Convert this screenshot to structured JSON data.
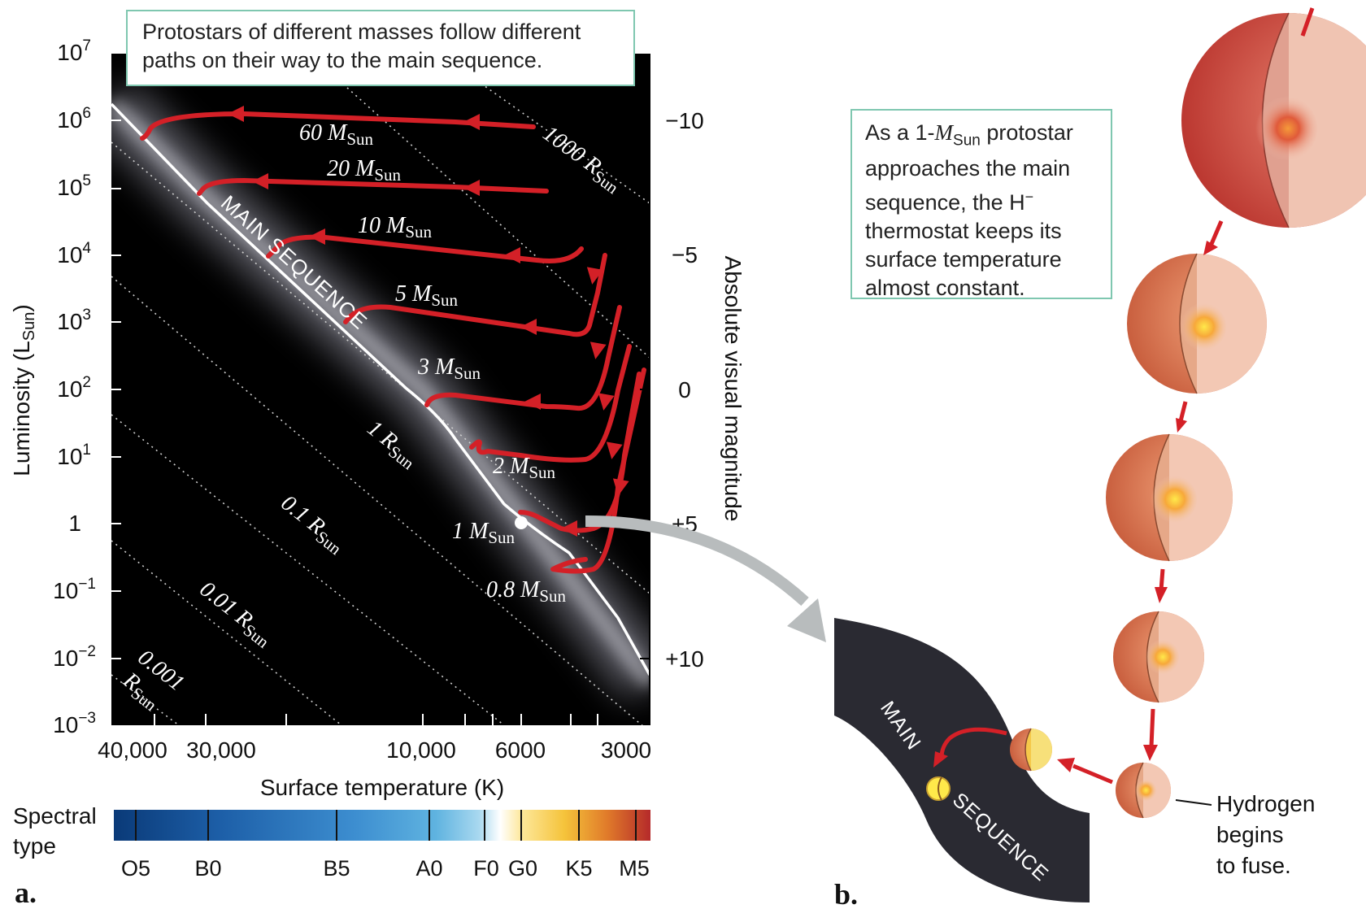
{
  "panel_a": {
    "label": "a.",
    "note": "Protostars of different masses follow different paths on their way to the main sequence.",
    "y_axis_label": "Luminosity (L",
    "y_axis_label_sub": "Sun",
    "y_axis_label_end": ")",
    "y_ticks": [
      {
        "base": "10",
        "exp": "7"
      },
      {
        "base": "10",
        "exp": "6"
      },
      {
        "base": "10",
        "exp": "5"
      },
      {
        "base": "10",
        "exp": "4"
      },
      {
        "base": "10",
        "exp": "3"
      },
      {
        "base": "10",
        "exp": "2"
      },
      {
        "base": "10",
        "exp": "1"
      },
      {
        "base": "1",
        "exp": ""
      },
      {
        "base": "10",
        "exp": "−1"
      },
      {
        "base": "10",
        "exp": "−2"
      },
      {
        "base": "10",
        "exp": "−3"
      }
    ],
    "right_axis_label": "Absolute visual magnitude",
    "right_ticks": [
      "−10",
      "−5",
      "0",
      "+5",
      "+10"
    ],
    "x_axis_label": "Surface temperature (K)",
    "x_ticks": [
      "40,000",
      "30,000",
      "10,000",
      "6000",
      "3000"
    ],
    "radius_lines": [
      {
        "value": "1000 R",
        "sub": "Sun"
      },
      {
        "value": "1 R",
        "sub": "Sun"
      },
      {
        "value": "0.1 R",
        "sub": "Sun"
      },
      {
        "value": "0.01 R",
        "sub": "Sun"
      },
      {
        "value": "0.001",
        "value2": "R",
        "sub": "Sun"
      }
    ],
    "main_sequence_label": "MAIN SEQUENCE",
    "tracks": [
      {
        "mass": "60 M",
        "sub": "Sun"
      },
      {
        "mass": "20 M",
        "sub": "Sun"
      },
      {
        "mass": "10 M",
        "sub": "Sun"
      },
      {
        "mass": "5 M",
        "sub": "Sun"
      },
      {
        "mass": "3 M",
        "sub": "Sun"
      },
      {
        "mass": "2 M",
        "sub": "Sun"
      },
      {
        "mass": "1 M",
        "sub": "Sun"
      },
      {
        "mass": "0.8 M",
        "sub": "Sun"
      }
    ],
    "spectral_label_1": "Spectral",
    "spectral_label_2": "type",
    "spectral_types": [
      "O5",
      "B0",
      "B5",
      "A0",
      "F0",
      "G0",
      "K5",
      "M5"
    ]
  },
  "panel_b": {
    "label": "b.",
    "note_pre": "As a 1-",
    "note_m": "M",
    "note_sub": "Sun",
    "note_mid": " protostar approaches the main sequence, the H",
    "note_sup": "−",
    "note_post": " thermostat keeps its surface temperature almost constant.",
    "band_label_1": "MAIN",
    "band_label_2": "SEQUENCE",
    "hydrogen_1": "Hydrogen",
    "hydrogen_2": "begins",
    "hydrogen_3": "to fuse."
  },
  "colors": {
    "track": "#d42027",
    "plot_bg": "#000000",
    "note_border": "#7fc7b0",
    "band": "#2a2a32"
  }
}
